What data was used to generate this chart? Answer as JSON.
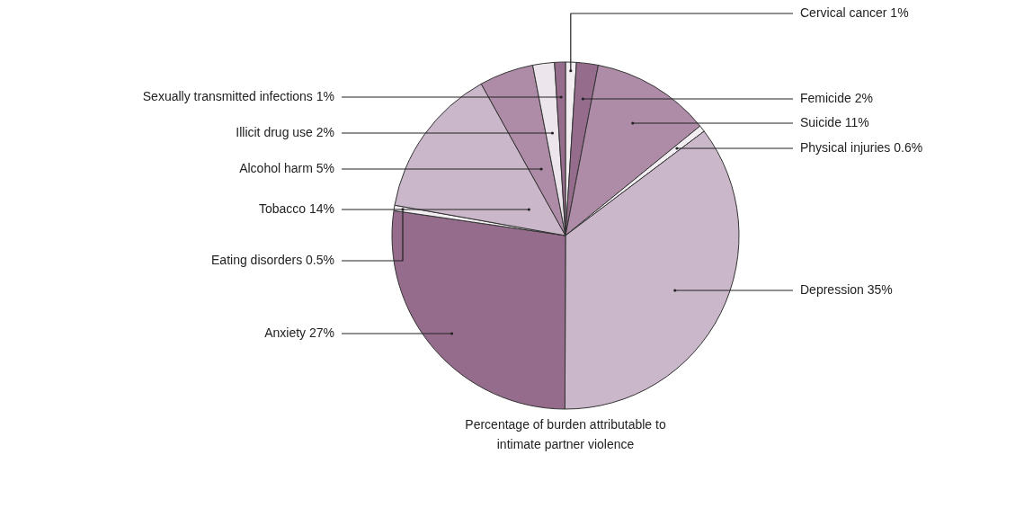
{
  "chart_data": {
    "type": "pie",
    "title": "Percentage of burden attributable to intimate partner violence",
    "categories": [
      "Cervical cancer",
      "Femicide",
      "Suicide",
      "Physical injuries",
      "Depression",
      "Anxiety",
      "Eating disorders",
      "Tobacco",
      "Alcohol harm",
      "Illicit drug use",
      "Sexually transmitted infections"
    ],
    "values": [
      1,
      2,
      11,
      0.6,
      35,
      27,
      0.5,
      14,
      5,
      2,
      1
    ],
    "value_labels": [
      "1%",
      "2%",
      "11%",
      "0.6%",
      "35%",
      "27%",
      "0.5%",
      "14%",
      "5%",
      "2%",
      "1%"
    ],
    "colors": [
      "#f2eef2",
      "#956c8c",
      "#ae8ca7",
      "#f2eef2",
      "#cab7c9",
      "#956c8c",
      "#f2eef2",
      "#cab7c9",
      "#ae8ca7",
      "#ede5ec",
      "#956c8c"
    ]
  }
}
